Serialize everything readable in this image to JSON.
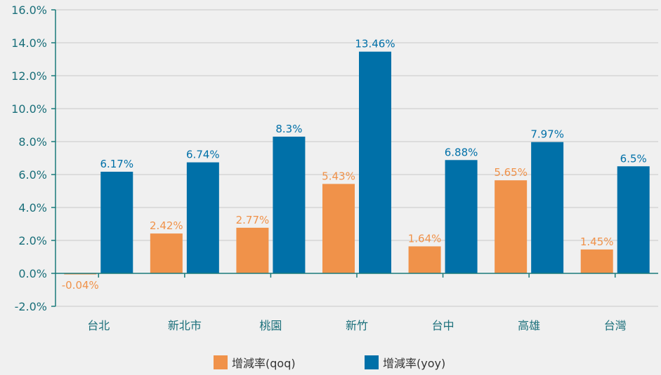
{
  "colors": {
    "qoq": "#f0924a",
    "yoy": "#0070a8",
    "axis": "#1a7a7a",
    "grid": "#c8c8c8",
    "tick_text": "#1a6f7a"
  },
  "chart_data": {
    "type": "bar",
    "categories": [
      "台北",
      "新北市",
      "桃園",
      "新竹",
      "台中",
      "高雄",
      "台灣"
    ],
    "series": [
      {
        "name": "增減率(qoq)",
        "values": [
          -0.04,
          2.42,
          2.77,
          5.43,
          1.64,
          5.65,
          1.45
        ],
        "labels": [
          "-0.04%",
          "2.42%",
          "2.77%",
          "5.43%",
          "1.64%",
          "5.65%",
          "1.45%"
        ]
      },
      {
        "name": "增減率(yoy)",
        "values": [
          6.17,
          6.74,
          8.3,
          13.46,
          6.88,
          7.97,
          6.5
        ],
        "labels": [
          "6.17%",
          "6.74%",
          "8.3%",
          "13.46%",
          "6.88%",
          "7.97%",
          "6.5%"
        ]
      }
    ],
    "yticks": [
      "-2.0%",
      "0.0%",
      "2.0%",
      "4.0%",
      "6.0%",
      "8.0%",
      "10.0%",
      "12.0%",
      "14.0%",
      "16.0%"
    ],
    "ylim": [
      -2,
      16
    ],
    "grid": true,
    "legend": "bottom"
  }
}
